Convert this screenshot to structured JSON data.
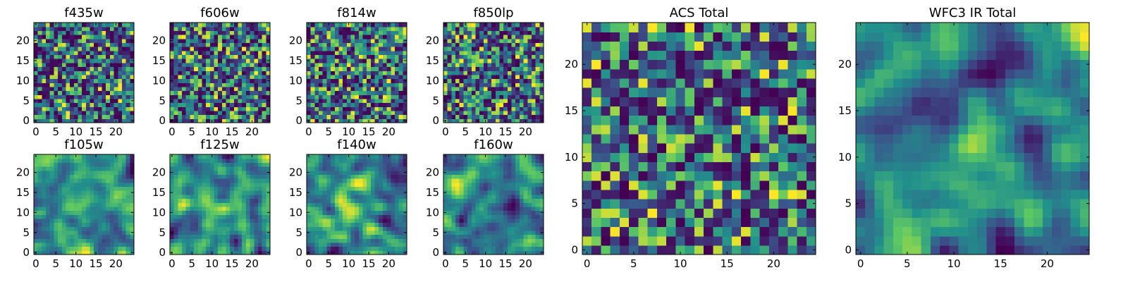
{
  "figure": {
    "colormap": "viridis",
    "background": "#ffffff",
    "grid": false,
    "colormap_stops": [
      "#440154",
      "#3b528b",
      "#21918c",
      "#5ec962",
      "#fde725"
    ]
  },
  "chart_data": [
    {
      "type": "heatmap",
      "title": "f435w",
      "grid_size": 25,
      "xlim": [
        0,
        24
      ],
      "ylim": [
        0,
        24
      ],
      "xticks": [
        0,
        5,
        10,
        15,
        20
      ],
      "yticks": [
        0,
        5,
        10,
        15,
        20
      ],
      "value_range": [
        0,
        1
      ],
      "pattern": "uniform speckle noise",
      "seed": 11
    },
    {
      "type": "heatmap",
      "title": "f606w",
      "grid_size": 25,
      "xlim": [
        0,
        24
      ],
      "ylim": [
        0,
        24
      ],
      "xticks": [
        0,
        5,
        10,
        15,
        20
      ],
      "yticks": [
        0,
        5,
        10,
        15,
        20
      ],
      "value_range": [
        0,
        1
      ],
      "pattern": "uniform speckle noise",
      "seed": 23
    },
    {
      "type": "heatmap",
      "title": "f814w",
      "grid_size": 25,
      "xlim": [
        0,
        24
      ],
      "ylim": [
        0,
        24
      ],
      "xticks": [
        0,
        5,
        10,
        15,
        20
      ],
      "yticks": [
        0,
        5,
        10,
        15,
        20
      ],
      "value_range": [
        0,
        1
      ],
      "pattern": "uniform speckle noise",
      "seed": 37
    },
    {
      "type": "heatmap",
      "title": "f850lp",
      "grid_size": 25,
      "xlim": [
        0,
        24
      ],
      "ylim": [
        0,
        24
      ],
      "xticks": [
        0,
        5,
        10,
        15,
        20
      ],
      "yticks": [
        0,
        5,
        10,
        15,
        20
      ],
      "value_range": [
        0,
        1
      ],
      "pattern": "uniform speckle noise",
      "seed": 41
    },
    {
      "type": "heatmap",
      "title": "f105w",
      "grid_size": 25,
      "xlim": [
        0,
        24
      ],
      "ylim": [
        0,
        24
      ],
      "xticks": [
        0,
        5,
        10,
        15,
        20
      ],
      "yticks": [
        0,
        5,
        10,
        15,
        20
      ],
      "value_range": [
        0,
        1
      ],
      "pattern": "smoothed noise",
      "seed": 53
    },
    {
      "type": "heatmap",
      "title": "f125w",
      "grid_size": 25,
      "xlim": [
        0,
        24
      ],
      "ylim": [
        0,
        24
      ],
      "xticks": [
        0,
        5,
        10,
        15,
        20
      ],
      "yticks": [
        0,
        5,
        10,
        15,
        20
      ],
      "value_range": [
        0,
        1
      ],
      "pattern": "smoothed noise",
      "seed": 67
    },
    {
      "type": "heatmap",
      "title": "f140w",
      "grid_size": 25,
      "xlim": [
        0,
        24
      ],
      "ylim": [
        0,
        24
      ],
      "xticks": [
        0,
        5,
        10,
        15,
        20
      ],
      "yticks": [
        0,
        5,
        10,
        15,
        20
      ],
      "value_range": [
        0,
        1
      ],
      "pattern": "smoothed noise",
      "seed": 71
    },
    {
      "type": "heatmap",
      "title": "f160w",
      "grid_size": 25,
      "xlim": [
        0,
        24
      ],
      "ylim": [
        0,
        24
      ],
      "xticks": [
        0,
        5,
        10,
        15,
        20
      ],
      "yticks": [
        0,
        5,
        10,
        15,
        20
      ],
      "value_range": [
        0,
        1
      ],
      "pattern": "smoothed noise",
      "seed": 83
    },
    {
      "type": "heatmap",
      "title": "ACS Total",
      "grid_size": 25,
      "xlim": [
        0,
        24
      ],
      "ylim": [
        0,
        24
      ],
      "xticks": [
        0,
        5,
        10,
        15,
        20
      ],
      "yticks": [
        0,
        5,
        10,
        15,
        20
      ],
      "value_range": [
        0,
        1
      ],
      "pattern": "uniform speckle noise",
      "seed": 97
    },
    {
      "type": "heatmap",
      "title": "WFC3 IR Total",
      "grid_size": 25,
      "xlim": [
        0,
        24
      ],
      "ylim": [
        0,
        24
      ],
      "xticks": [
        0,
        5,
        10,
        15,
        20
      ],
      "yticks": [
        0,
        5,
        10,
        15,
        20
      ],
      "value_range": [
        0,
        1
      ],
      "pattern": "smoothed noise",
      "seed": 101
    }
  ]
}
